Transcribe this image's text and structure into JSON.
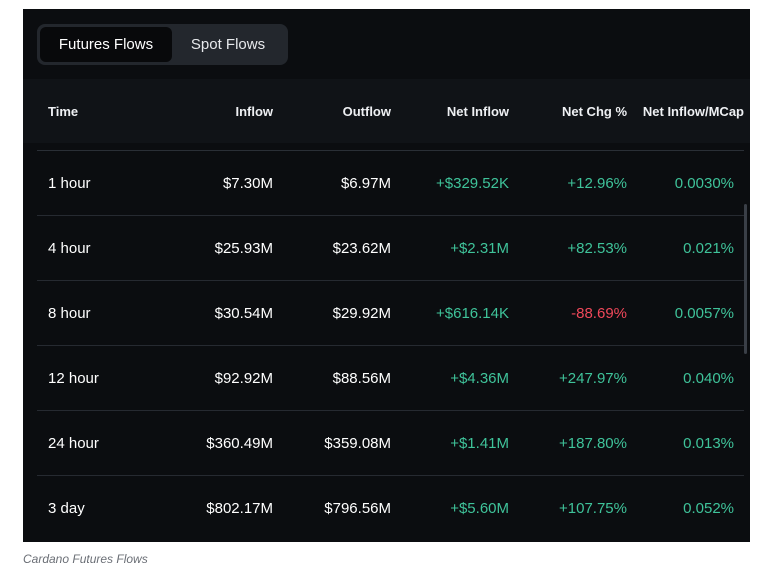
{
  "tabs": [
    {
      "label": "Futures Flows",
      "active": true
    },
    {
      "label": "Spot Flows",
      "active": false
    }
  ],
  "table": {
    "headers": [
      "Time",
      "Inflow",
      "Outflow",
      "Net Inflow",
      "Net Chg %",
      "Net Inflow/MCap"
    ],
    "rows": [
      {
        "time": "1 hour",
        "inflow": "$7.30M",
        "outflow": "$6.97M",
        "net_inflow": "+$329.52K",
        "net_chg": "+12.96%",
        "mcap": "0.0030%"
      },
      {
        "time": "4 hour",
        "inflow": "$25.93M",
        "outflow": "$23.62M",
        "net_inflow": "+$2.31M",
        "net_chg": "+82.53%",
        "mcap": "0.021%"
      },
      {
        "time": "8 hour",
        "inflow": "$30.54M",
        "outflow": "$29.92M",
        "net_inflow": "+$616.14K",
        "net_chg": "-88.69%",
        "mcap": "0.0057%"
      },
      {
        "time": "12 hour",
        "inflow": "$92.92M",
        "outflow": "$88.56M",
        "net_inflow": "+$4.36M",
        "net_chg": "+247.97%",
        "mcap": "0.040%"
      },
      {
        "time": "24 hour",
        "inflow": "$360.49M",
        "outflow": "$359.08M",
        "net_inflow": "+$1.41M",
        "net_chg": "+187.80%",
        "mcap": "0.013%"
      },
      {
        "time": "3 day",
        "inflow": "$802.17M",
        "outflow": "$796.56M",
        "net_inflow": "+$5.60M",
        "net_chg": "+107.75%",
        "mcap": "0.052%"
      }
    ]
  },
  "caption": "Cardano Futures Flows",
  "colors": {
    "positive": "#3fc39a",
    "negative": "#f0485a",
    "background": "#0b0d10"
  }
}
